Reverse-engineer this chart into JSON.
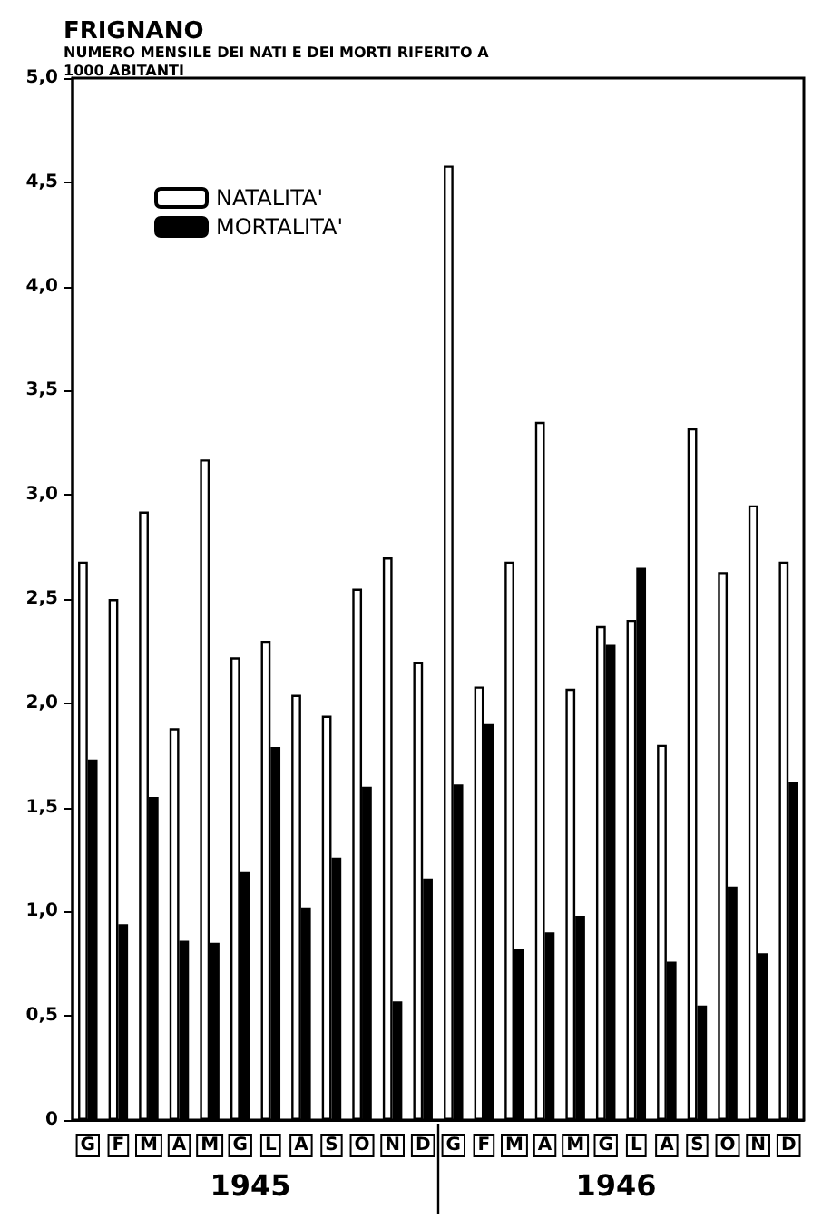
{
  "chart_data": {
    "type": "bar",
    "title": "FRIGNANO",
    "subtitle": "NUMERO MENSILE DEI NATI E DEI MORTI RIFERITO A 1000 ABITANTI",
    "categories": [
      "G",
      "F",
      "M",
      "A",
      "M",
      "G",
      "L",
      "A",
      "S",
      "O",
      "N",
      "D",
      "G",
      "F",
      "M",
      "A",
      "M",
      "G",
      "L",
      "A",
      "S",
      "O",
      "N",
      "D"
    ],
    "series": [
      {
        "name": "NATALITA'",
        "color": "#ffffff",
        "values": [
          2.68,
          2.5,
          2.92,
          1.88,
          3.17,
          2.22,
          2.3,
          2.04,
          1.94,
          2.55,
          2.7,
          2.2,
          4.58,
          2.08,
          2.68,
          3.35,
          2.07,
          2.37,
          2.4,
          1.8,
          3.32,
          2.63,
          2.95,
          2.68
        ]
      },
      {
        "name": "MORTALITA'",
        "color": "#000000",
        "values": [
          1.73,
          0.94,
          1.55,
          0.86,
          0.85,
          1.19,
          1.79,
          1.02,
          1.26,
          1.6,
          0.57,
          1.16,
          1.61,
          1.9,
          0.82,
          0.9,
          0.98,
          2.28,
          2.65,
          0.76,
          0.55,
          1.12,
          0.8,
          1.62
        ]
      }
    ],
    "annotations": [
      "1945",
      "1946"
    ],
    "ylim": [
      0,
      5
    ],
    "yticks": [
      {
        "value": 0,
        "label": "0"
      },
      {
        "value": 0.5,
        "label": "0,5"
      },
      {
        "value": 1,
        "label": "1,0"
      },
      {
        "value": 1.5,
        "label": "1,5"
      },
      {
        "value": 2,
        "label": "2,0"
      },
      {
        "value": 2.5,
        "label": "2,5"
      },
      {
        "value": 3,
        "label": "3,0"
      },
      {
        "value": 3.5,
        "label": "3,5"
      },
      {
        "value": 4,
        "label": "4,0"
      },
      {
        "value": 4.5,
        "label": "4,5"
      },
      {
        "value": 5,
        "label": "5,0"
      }
    ],
    "grid": false,
    "legend": "top left"
  }
}
